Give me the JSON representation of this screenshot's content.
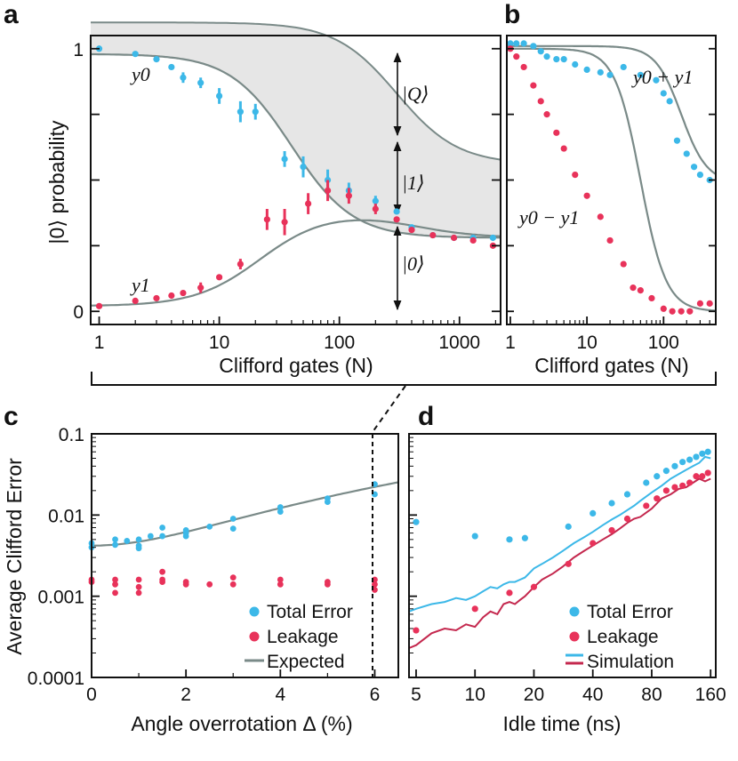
{
  "colors": {
    "total": "#3cb8e8",
    "leak": "#e8325a",
    "curve": "#7a8a88",
    "shade": "#e6e6e6",
    "frame": "#111111"
  },
  "panels": {
    "a": "a",
    "b": "b",
    "c": "c",
    "d": "d"
  },
  "chart_data": [
    {
      "id": "a",
      "type": "scatter",
      "xscale": "log",
      "xlim": [
        0.85,
        2200
      ],
      "ylim": [
        -0.05,
        1.05
      ],
      "ylabel": "|0⟩ probability",
      "xlabel": "Clifford gates (N)",
      "xticks": [
        "1",
        "10",
        "100",
        "1000"
      ],
      "yticks": [
        "0",
        "1"
      ],
      "series_labels": {
        "y0": "y0",
        "y1": "y1"
      },
      "state_labels": {
        "Q": "|Q⟩",
        "one": "|1⟩",
        "zero": "|0⟩"
      },
      "series": [
        {
          "name": "y0",
          "color": "total",
          "x": [
            1,
            2,
            3,
            4,
            5,
            7,
            10,
            15,
            20,
            35,
            50,
            80,
            120,
            200,
            300,
            400,
            600,
            900,
            1300,
            1900
          ],
          "y": [
            1.0,
            0.98,
            0.96,
            0.93,
            0.89,
            0.87,
            0.82,
            0.76,
            0.76,
            0.58,
            0.55,
            0.5,
            0.46,
            0.42,
            0.38,
            0.32,
            0.29,
            0.28,
            0.28,
            0.28
          ],
          "err": [
            0,
            0,
            0,
            0.01,
            0.02,
            0.02,
            0.03,
            0.04,
            0.03,
            0.03,
            0.04,
            0.04,
            0.03,
            0.02,
            0.01,
            0.01,
            0.01,
            0.01,
            0.01,
            0.01
          ]
        },
        {
          "name": "y1",
          "color": "leak",
          "x": [
            1,
            2,
            3,
            4,
            5,
            7,
            10,
            15,
            25,
            35,
            55,
            80,
            120,
            200,
            300,
            400,
            600,
            900,
            1300,
            1900
          ],
          "y": [
            0.02,
            0.04,
            0.05,
            0.06,
            0.07,
            0.09,
            0.13,
            0.18,
            0.35,
            0.34,
            0.41,
            0.46,
            0.44,
            0.39,
            0.35,
            0.31,
            0.29,
            0.28,
            0.27,
            0.25
          ],
          "err": [
            0,
            0,
            0,
            0,
            0,
            0.02,
            0.01,
            0.02,
            0.04,
            0.05,
            0.04,
            0.04,
            0.03,
            0.02,
            0.01,
            0.01,
            0.01,
            0.01,
            0.01,
            0.01
          ]
        }
      ],
      "fits": {
        "y0": {
          "A": 0.7,
          "N0": 40,
          "n": 1.7,
          "B": 0.28
        },
        "y1": {
          "A": 0.34,
          "N0": 18,
          "n": 1.8,
          "B": 0.02,
          "C": 0.3,
          "N1": 200,
          "m": 2.0,
          "D": 0.28
        },
        "sum": {
          "A": 0.54,
          "N0": 300,
          "n": 1.7,
          "B": 0.56
        }
      }
    },
    {
      "id": "b",
      "type": "scatter",
      "xscale": "log",
      "xlim": [
        0.9,
        480
      ],
      "ylim": [
        -0.05,
        1.05
      ],
      "xlabel": "Clifford gates (N)",
      "xticks": [
        "1",
        "10",
        "100"
      ],
      "labels": {
        "sum": "y0 + y1",
        "diff": "y0 − y1"
      },
      "series": [
        {
          "name": "y0 + y1",
          "color": "total",
          "x": [
            1,
            1.2,
            1.5,
            2,
            2.5,
            3,
            4,
            5,
            7,
            10,
            15,
            20,
            30,
            50,
            80,
            100,
            120,
            150,
            200,
            250,
            300,
            400
          ],
          "y": [
            1.02,
            1.02,
            1.02,
            1.01,
            0.99,
            0.97,
            0.96,
            0.96,
            0.94,
            0.92,
            0.91,
            0.9,
            0.93,
            0.9,
            0.88,
            0.83,
            0.8,
            0.65,
            0.6,
            0.55,
            0.52,
            0.5
          ]
        },
        {
          "name": "y0 − y1",
          "color": "leak",
          "x": [
            1,
            1.2,
            1.5,
            2,
            2.5,
            3,
            4,
            5,
            7,
            10,
            15,
            20,
            30,
            40,
            50,
            70,
            100,
            130,
            170,
            220,
            300,
            400
          ],
          "y": [
            1.0,
            0.97,
            0.93,
            0.86,
            0.8,
            0.75,
            0.68,
            0.62,
            0.52,
            0.44,
            0.36,
            0.27,
            0.18,
            0.09,
            0.08,
            0.05,
            0.01,
            0.0,
            0.0,
            0.0,
            0.03,
            0.03
          ]
        }
      ],
      "fits": {
        "sum": {
          "A": 0.52,
          "N0": 170,
          "n": 2.6,
          "B": 0.49
        },
        "diff": {
          "A": 1.0,
          "N0": 50,
          "n": 2.6,
          "B": 0.0
        }
      }
    },
    {
      "id": "c",
      "type": "scatter",
      "yscale": "log",
      "xlim": [
        0,
        6.5
      ],
      "ylim": [
        0.0001,
        0.1
      ],
      "xlabel": "Angle overrotation Δ (%)",
      "ylabel": "Average Clifford Error",
      "xticks": [
        "0",
        "2",
        "4",
        "6"
      ],
      "yticks": [
        "0.0001",
        "0.001",
        "0.01",
        "0.1"
      ],
      "legend": {
        "position": "bottom-right",
        "items": [
          "Total Error",
          "Leakage",
          "Expected"
        ]
      },
      "series": [
        {
          "name": "Total Error",
          "color": "total",
          "x": [
            0,
            0,
            0.5,
            0.5,
            0.75,
            1,
            1,
            1,
            1.25,
            1.5,
            1.5,
            2,
            2,
            2,
            2.5,
            3,
            3,
            4,
            4,
            5,
            5,
            6,
            6
          ],
          "y": [
            0.0045,
            0.004,
            0.005,
            0.0043,
            0.0048,
            0.005,
            0.0042,
            0.0039,
            0.0055,
            0.007,
            0.0055,
            0.0065,
            0.006,
            0.0055,
            0.0072,
            0.009,
            0.0068,
            0.0125,
            0.011,
            0.016,
            0.0145,
            0.024,
            0.018
          ]
        },
        {
          "name": "Leakage",
          "color": "leak",
          "x": [
            0,
            0,
            0.5,
            0.5,
            0.5,
            1,
            1,
            1,
            1.5,
            1.5,
            1.5,
            2,
            2,
            2.5,
            3,
            3,
            4,
            4,
            5,
            5,
            6,
            6,
            6
          ],
          "y": [
            0.0016,
            0.0015,
            0.0016,
            0.0014,
            0.0011,
            0.0016,
            0.0013,
            0.0011,
            0.002,
            0.0016,
            0.0015,
            0.0015,
            0.0014,
            0.0014,
            0.0017,
            0.0014,
            0.0016,
            0.0014,
            0.0015,
            0.0014,
            0.0016,
            0.0014,
            0.0012
          ]
        }
      ],
      "expected": {
        "base": 0.0042,
        "k": 0.0005,
        "p": 2
      }
    },
    {
      "id": "d",
      "type": "scatter",
      "xscale": "log",
      "yscale": "log",
      "xlim": [
        4.6,
        170
      ],
      "ylim": [
        0.0001,
        0.1
      ],
      "xlabel": "Idle time (ns)",
      "xticks": [
        "5",
        "10",
        "20",
        "40",
        "80",
        "160"
      ],
      "legend": {
        "position": "bottom-right",
        "items": [
          "Total Error",
          "Leakage",
          "Simulation"
        ]
      },
      "series": [
        {
          "name": "Total Error",
          "color": "total",
          "x": [
            5,
            10,
            15,
            18,
            30,
            40,
            50,
            60,
            75,
            85,
            95,
            105,
            115,
            125,
            135,
            145,
            155
          ],
          "y": [
            0.0082,
            0.0055,
            0.005,
            0.0052,
            0.0072,
            0.0105,
            0.014,
            0.018,
            0.025,
            0.03,
            0.035,
            0.04,
            0.045,
            0.048,
            0.052,
            0.057,
            0.06
          ]
        },
        {
          "name": "Leakage",
          "color": "leak",
          "x": [
            5,
            10,
            15,
            20,
            30,
            40,
            50,
            60,
            75,
            85,
            95,
            105,
            115,
            125,
            135,
            145,
            155
          ],
          "y": [
            0.00038,
            0.0007,
            0.0011,
            0.0013,
            0.0025,
            0.0045,
            0.0065,
            0.009,
            0.013,
            0.016,
            0.02,
            0.022,
            0.023,
            0.025,
            0.03,
            0.03,
            0.033
          ]
        }
      ],
      "simulation": {
        "x": [
          4.6,
          5,
          6,
          7,
          8,
          9,
          10,
          11,
          12,
          13,
          14,
          15,
          16,
          17,
          18,
          20,
          22,
          25,
          28,
          32,
          36,
          40,
          45,
          50,
          55,
          60,
          65,
          70,
          80,
          90,
          100,
          110,
          120,
          130,
          140,
          150,
          160
        ],
        "total": [
          0.00065,
          0.0007,
          0.0008,
          0.00085,
          0.00095,
          0.0009,
          0.001,
          0.00115,
          0.0013,
          0.00125,
          0.0014,
          0.0015,
          0.0015,
          0.0016,
          0.0017,
          0.0022,
          0.0025,
          0.003,
          0.0036,
          0.0045,
          0.0053,
          0.0062,
          0.0075,
          0.0088,
          0.01,
          0.0115,
          0.013,
          0.015,
          0.019,
          0.023,
          0.028,
          0.032,
          0.036,
          0.04,
          0.044,
          0.052,
          0.05
        ],
        "leak": [
          0.00023,
          0.00025,
          0.00035,
          0.0004,
          0.00038,
          0.00045,
          0.00042,
          0.00055,
          0.00065,
          0.0006,
          0.0008,
          0.00085,
          0.0008,
          0.0009,
          0.001,
          0.0013,
          0.0016,
          0.0019,
          0.0023,
          0.003,
          0.0036,
          0.0042,
          0.005,
          0.0058,
          0.0068,
          0.008,
          0.009,
          0.0095,
          0.012,
          0.016,
          0.018,
          0.021,
          0.022,
          0.025,
          0.028,
          0.026,
          0.028
        ]
      }
    }
  ]
}
